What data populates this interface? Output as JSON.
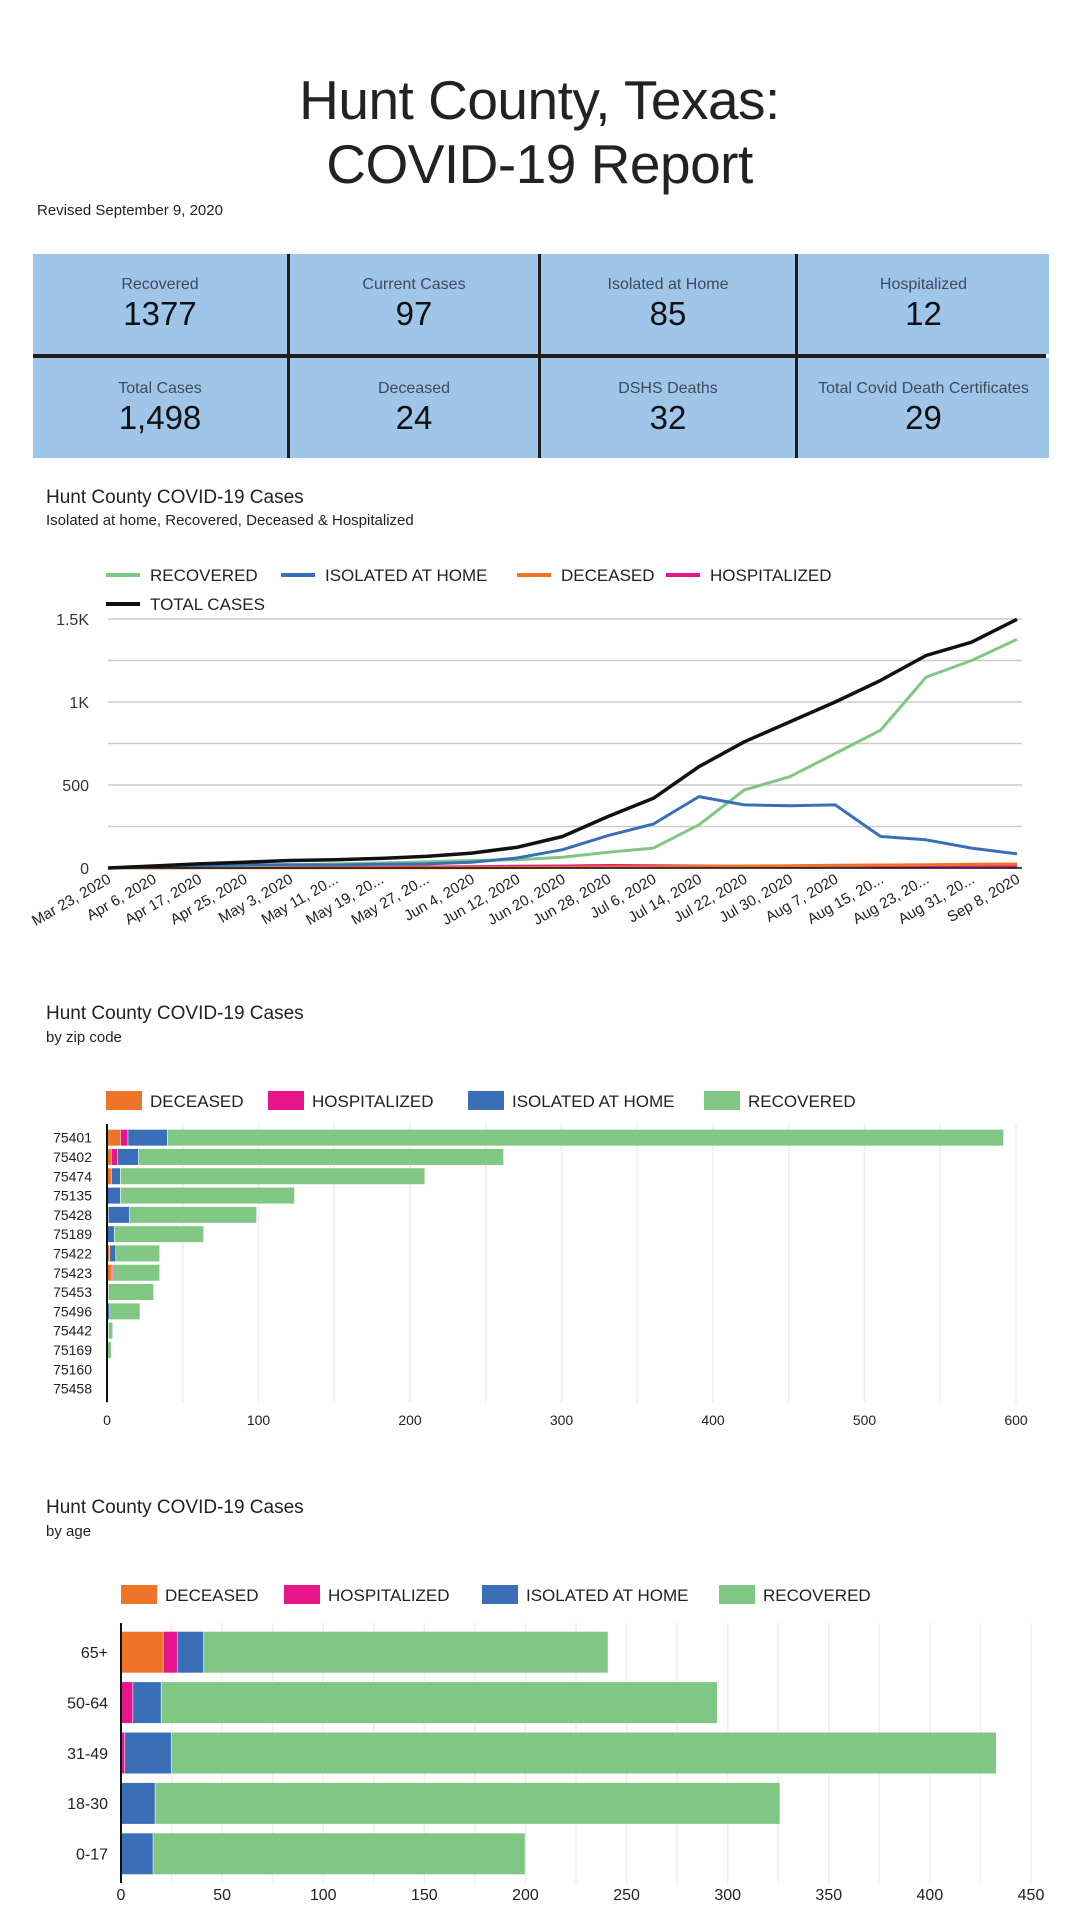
{
  "header": {
    "title_line1": "Hunt County, Texas:",
    "title_line2": "COVID-19 Report",
    "revised": "Revised September 9, 2020"
  },
  "kpis": [
    {
      "label": "Recovered",
      "value": "1377"
    },
    {
      "label": "Current Cases",
      "value": "97"
    },
    {
      "label": "Isolated at Home",
      "value": "85"
    },
    {
      "label": "Hospitalized",
      "value": "12"
    },
    {
      "label": "Total Cases",
      "value": "1,498"
    },
    {
      "label": "Deceased",
      "value": "24"
    },
    {
      "label": "DSHS Deaths",
      "value": "32"
    },
    {
      "label": "Total Covid Death Certificates",
      "value": "29"
    }
  ],
  "colors": {
    "recovered": "#81c784",
    "isolated": "#3a6fb8",
    "deceased": "#f07427",
    "hospitalized": "#e6158c",
    "total": "#111111",
    "kpi_bg": "#9fc5e8"
  },
  "chart_data": [
    {
      "type": "line",
      "title": "Hunt County COVID-19 Cases",
      "subtitle": "Isolated at home, Recovered, Deceased & Hospitalized",
      "xlabel": "",
      "ylabel": "",
      "ylim": [
        0,
        1500
      ],
      "yticks": [
        0,
        500,
        1000,
        1500
      ],
      "ytick_labels": [
        "0",
        "500",
        "1K",
        "1.5K"
      ],
      "grid_step": 250,
      "legend_position": "top",
      "x_tick_labels": [
        "Mar 23, 2020",
        "Apr 6, 2020",
        "Apr 17, 2020",
        "Apr 25, 2020",
        "May 3, 2020",
        "May 11, 20...",
        "May 19, 20...",
        "May 27, 20...",
        "Jun 4, 2020",
        "Jun 12, 2020",
        "Jun 20, 2020",
        "Jun 28, 2020",
        "Jul 6, 2020",
        "Jul 14, 2020",
        "Jul 22, 2020",
        "Jul 30, 2020",
        "Aug 7, 2020",
        "Aug 15, 20...",
        "Aug 23, 20...",
        "Aug 31, 20...",
        "Sep 8, 2020"
      ],
      "x_days": [
        "Mar 23",
        "Apr 6",
        "Apr 17",
        "Apr 25",
        "May 3",
        "May 11",
        "May 19",
        "May 27",
        "Jun 4",
        "Jun 12",
        "Jun 20",
        "Jun 28",
        "Jul 6",
        "Jul 14",
        "Jul 22",
        "Jul 30",
        "Aug 7",
        "Aug 15",
        "Aug 23",
        "Aug 31",
        "Sep 8"
      ],
      "series": [
        {
          "name": "RECOVERED",
          "key": "recovered",
          "values": [
            0,
            3,
            8,
            15,
            20,
            25,
            30,
            38,
            45,
            50,
            65,
            95,
            120,
            260,
            470,
            550,
            690,
            830,
            1150,
            1250,
            1377
          ]
        },
        {
          "name": "ISOLATED AT HOME",
          "key": "isolated",
          "values": [
            0,
            8,
            14,
            18,
            20,
            18,
            22,
            25,
            35,
            60,
            110,
            195,
            265,
            430,
            380,
            375,
            380,
            190,
            170,
            120,
            85
          ]
        },
        {
          "name": "DECEASED",
          "key": "deceased",
          "values": [
            0,
            0,
            1,
            1,
            1,
            2,
            2,
            2,
            2,
            3,
            4,
            6,
            8,
            10,
            12,
            14,
            16,
            18,
            20,
            22,
            24
          ]
        },
        {
          "name": "HOSPITALIZED",
          "key": "hospitalized",
          "values": [
            0,
            2,
            3,
            3,
            4,
            4,
            5,
            6,
            8,
            10,
            12,
            15,
            14,
            12,
            10,
            12,
            14,
            12,
            12,
            14,
            12
          ]
        },
        {
          "name": "TOTAL CASES",
          "key": "total",
          "values": [
            0,
            12,
            25,
            35,
            45,
            50,
            58,
            70,
            90,
            125,
            190,
            310,
            420,
            610,
            760,
            880,
            1000,
            1130,
            1280,
            1360,
            1498
          ]
        }
      ]
    },
    {
      "type": "bar",
      "orientation": "horizontal",
      "stacked": true,
      "title": "Hunt County COVID-19 Cases",
      "subtitle": "by zip code",
      "legend_position": "top",
      "xlim": [
        0,
        600
      ],
      "xticks": [
        0,
        100,
        200,
        300,
        400,
        500,
        600
      ],
      "grid_step": 50,
      "categories": [
        "75401",
        "75402",
        "75474",
        "75135",
        "75428",
        "75189",
        "75422",
        "75423",
        "75453",
        "75496",
        "75442",
        "75169",
        "75160",
        "75458"
      ],
      "series": [
        {
          "name": "DECEASED",
          "key": "deceased",
          "values": [
            9,
            3,
            3,
            0,
            1,
            0,
            2,
            3,
            0,
            0,
            1,
            0,
            0,
            0
          ]
        },
        {
          "name": "HOSPITALIZED",
          "key": "hospitalized",
          "values": [
            5,
            4,
            0,
            0,
            0,
            0,
            0,
            1,
            0,
            0,
            0,
            0,
            0,
            0
          ]
        },
        {
          "name": "ISOLATED AT HOME",
          "key": "isolated",
          "values": [
            26,
            14,
            6,
            9,
            14,
            5,
            4,
            0,
            1,
            2,
            0,
            0,
            0,
            0
          ]
        },
        {
          "name": "RECOVERED",
          "key": "recovered",
          "values": [
            552,
            241,
            201,
            115,
            84,
            59,
            29,
            31,
            30,
            20,
            3,
            3,
            0,
            0
          ]
        }
      ]
    },
    {
      "type": "bar",
      "orientation": "horizontal",
      "stacked": true,
      "title": "Hunt County COVID-19 Cases",
      "subtitle": "by age",
      "legend_position": "top",
      "xlim": [
        0,
        450
      ],
      "xticks": [
        0,
        50,
        100,
        150,
        200,
        250,
        300,
        350,
        400,
        450
      ],
      "grid_step": 25,
      "categories": [
        "65+",
        "50-64",
        "31-49",
        "18-30",
        "0-17"
      ],
      "series": [
        {
          "name": "DECEASED",
          "key": "deceased",
          "values": [
            21,
            0,
            0,
            0,
            0
          ]
        },
        {
          "name": "HOSPITALIZED",
          "key": "hospitalized",
          "values": [
            7,
            6,
            2,
            0,
            0
          ]
        },
        {
          "name": "ISOLATED AT HOME",
          "key": "isolated",
          "values": [
            13,
            14,
            23,
            17,
            16
          ]
        },
        {
          "name": "RECOVERED",
          "key": "recovered",
          "values": [
            200,
            275,
            408,
            309,
            184
          ]
        }
      ]
    }
  ]
}
